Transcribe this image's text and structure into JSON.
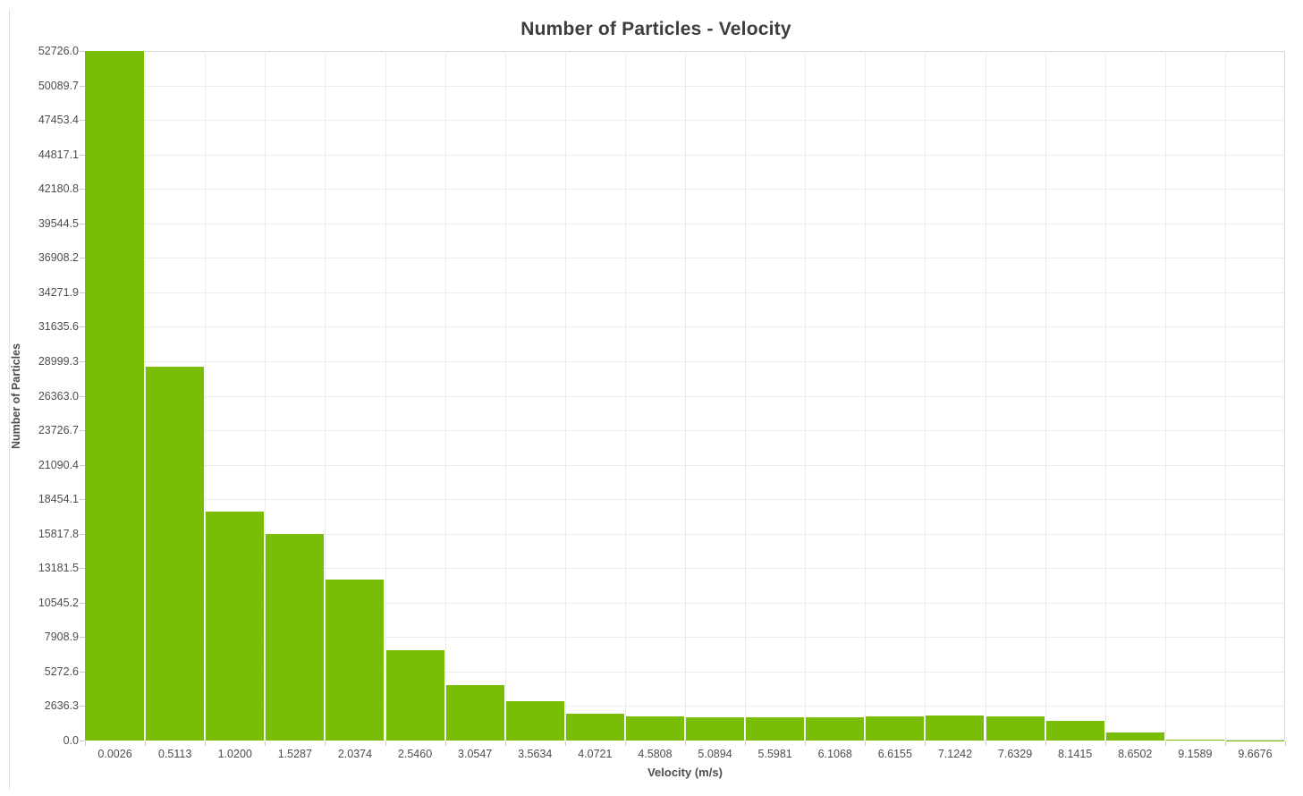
{
  "chart_data": {
    "type": "bar",
    "subtype": "histogram",
    "title": "Number of Particles - Velocity",
    "xlabel": "Velocity (m/s)",
    "ylabel": "Number of Particles",
    "categories": [
      "0.0026",
      "0.5113",
      "1.0200",
      "1.5287",
      "2.0374",
      "2.5460",
      "3.0547",
      "3.5634",
      "4.0721",
      "4.5808",
      "5.0894",
      "5.5981",
      "6.1068",
      "6.6155",
      "7.1242",
      "7.6329",
      "8.1415",
      "8.6502",
      "9.1589",
      "9.6676"
    ],
    "values": [
      52726,
      28560,
      17530,
      15820,
      12290,
      6890,
      4260,
      2990,
      2060,
      1830,
      1760,
      1760,
      1760,
      1830,
      1890,
      1860,
      1500,
      600,
      90,
      10
    ],
    "ylim": [
      0,
      52726
    ],
    "y_tick_step": 2636.3,
    "y_tick_labels": [
      "0.0",
      "2636.3",
      "5272.6",
      "7908.9",
      "10545.2",
      "13181.5",
      "15817.8",
      "18454.1",
      "21090.4",
      "23726.7",
      "26363.0",
      "28999.3",
      "31635.6",
      "34271.9",
      "36908.2",
      "39544.5",
      "42180.8",
      "44817.1",
      "47453.4",
      "50089.7",
      "52726.0"
    ],
    "grid": true,
    "legend": "none",
    "colors": {
      "bar": "#79bd05",
      "grid": "#ececec",
      "plot_border": "#d9d9d9",
      "tick": "#c9c9c9",
      "label": "#4d4d4d",
      "title": "#3d3d3d",
      "panel_divider": "#e0e0e0",
      "background": "#ffffff"
    }
  }
}
